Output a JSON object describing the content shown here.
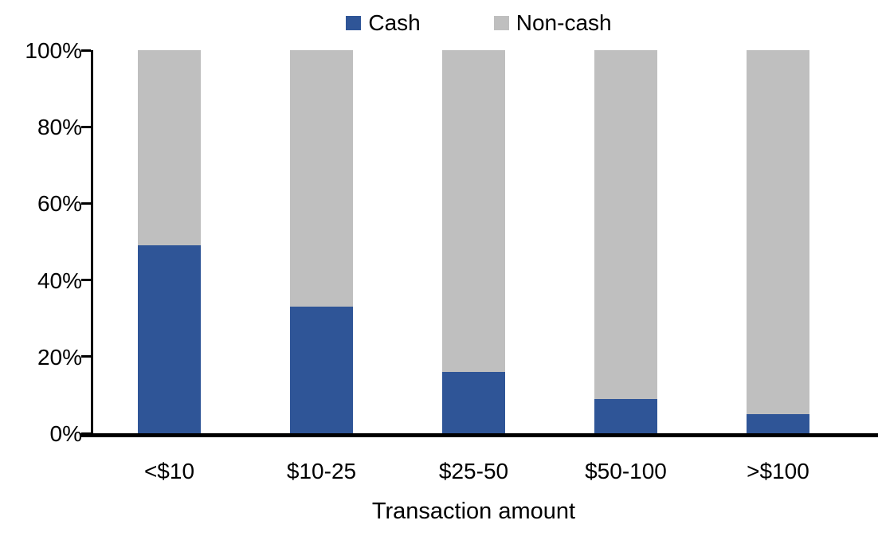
{
  "chart_data": {
    "type": "bar",
    "variant": "stacked-100-percent-column",
    "title": "",
    "xlabel": "Transaction amount",
    "ylabel": "",
    "categories": [
      "<$10",
      "$10-25",
      "$25-50",
      "$50-100",
      ">$100"
    ],
    "series": [
      {
        "name": "Cash",
        "color": "#2F5597",
        "values": [
          49,
          33,
          16,
          9,
          5
        ]
      },
      {
        "name": "Non-cash",
        "color": "#BFBFBF",
        "values": [
          51,
          67,
          84,
          91,
          95
        ]
      }
    ],
    "ylim": [
      0,
      100
    ],
    "yticks": [
      {
        "label": "0%",
        "value": 0
      },
      {
        "label": "20%",
        "value": 20
      },
      {
        "label": "40%",
        "value": 40
      },
      {
        "label": "60%",
        "value": 60
      },
      {
        "label": "80%",
        "value": 80
      },
      {
        "label": "100%",
        "value": 100
      }
    ],
    "legend_position": "top-center",
    "grid": false,
    "axis_color": "#000000",
    "background_color": "#FFFFFF"
  }
}
